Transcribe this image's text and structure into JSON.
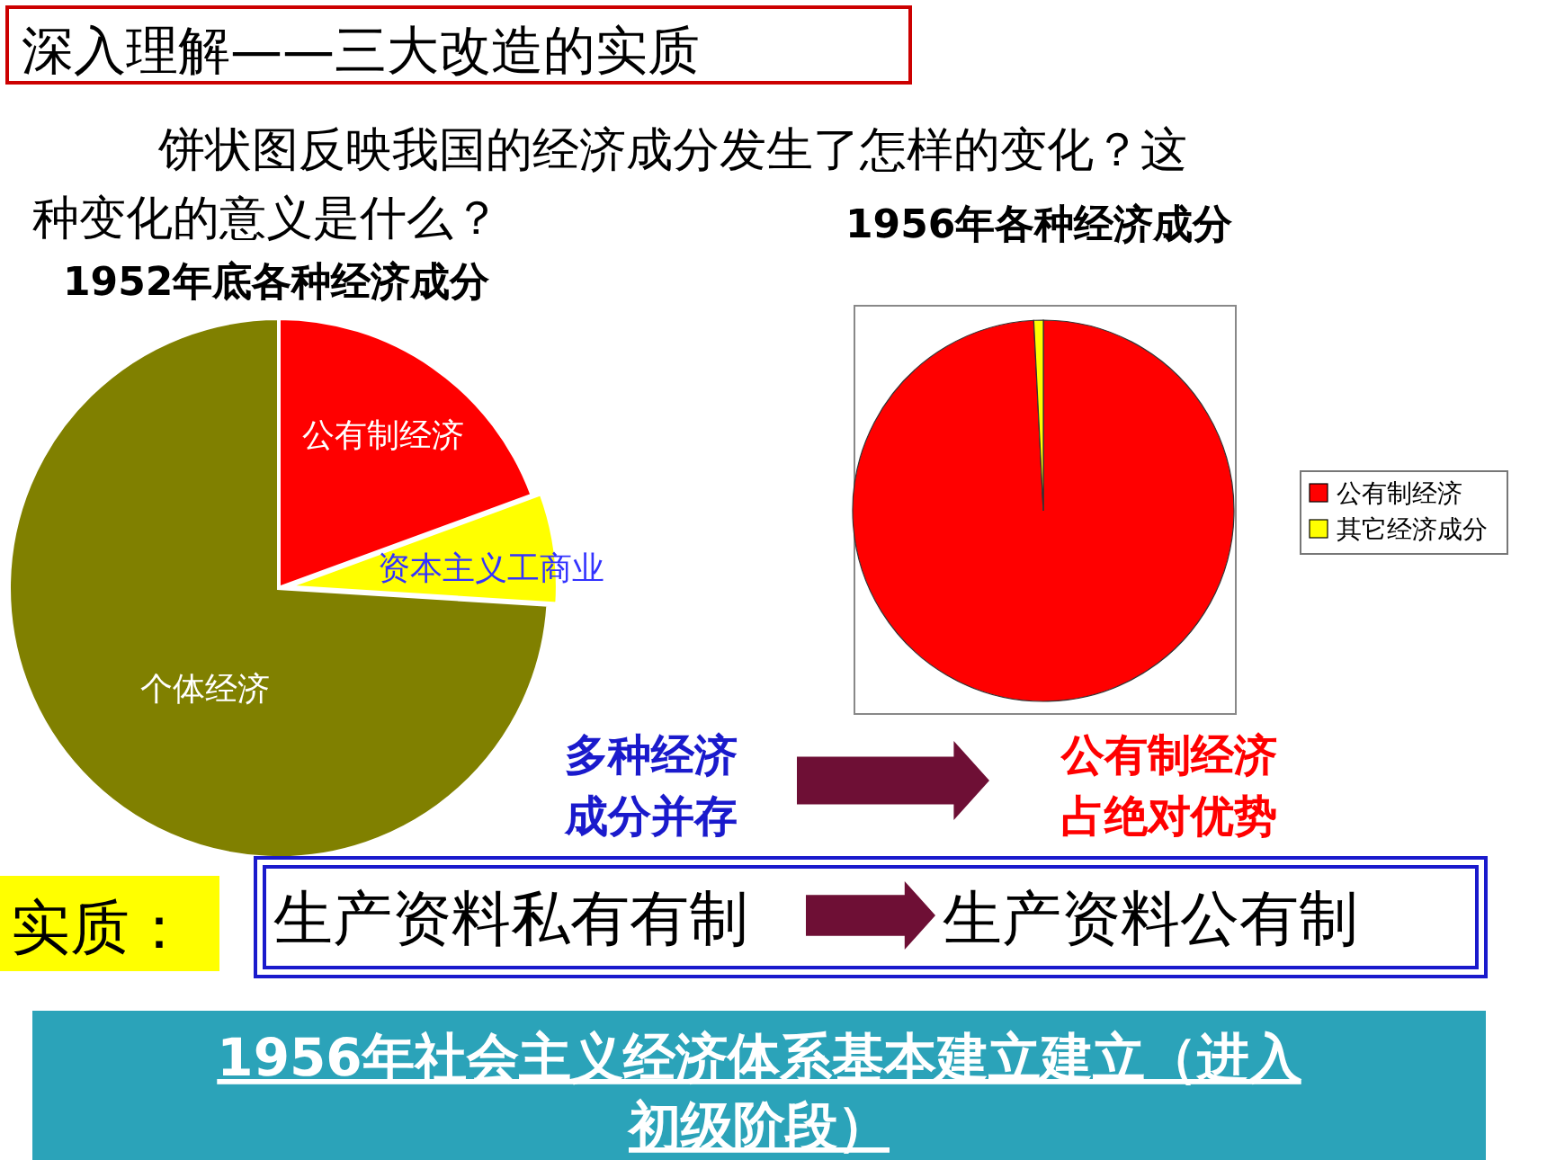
{
  "chart_data": [
    {
      "type": "other",
      "title": "深入理解——三大改造的实质",
      "annotations": [
        "饼状图反映我国的经济成分发生了怎样的变化？这种变化的意义是什么？",
        "多种经济成分并存",
        "公有制经济占绝对优势",
        "实质：",
        "生产资料私有有制",
        "生产资料公有制",
        "1956年社会主义经济体系基本建立建立（进入初级阶段）"
      ]
    },
    {
      "type": "pie",
      "title": "1952年底各种经济成分",
      "categories": [
        "公有制经济",
        "资本主义工商业",
        "个体经济"
      ],
      "values": [
        19.4,
        6.6,
        74
      ],
      "colors": [
        "#ff0000",
        "#ffff00",
        "#808000"
      ],
      "legend": false
    },
    {
      "type": "pie",
      "title": "1956年各种经济成分",
      "categories": [
        "公有制经济",
        "其它经济成分"
      ],
      "values": [
        99.2,
        0.8
      ],
      "colors": [
        "#ff0000",
        "#ffff00"
      ],
      "legend": "right"
    }
  ]
}
